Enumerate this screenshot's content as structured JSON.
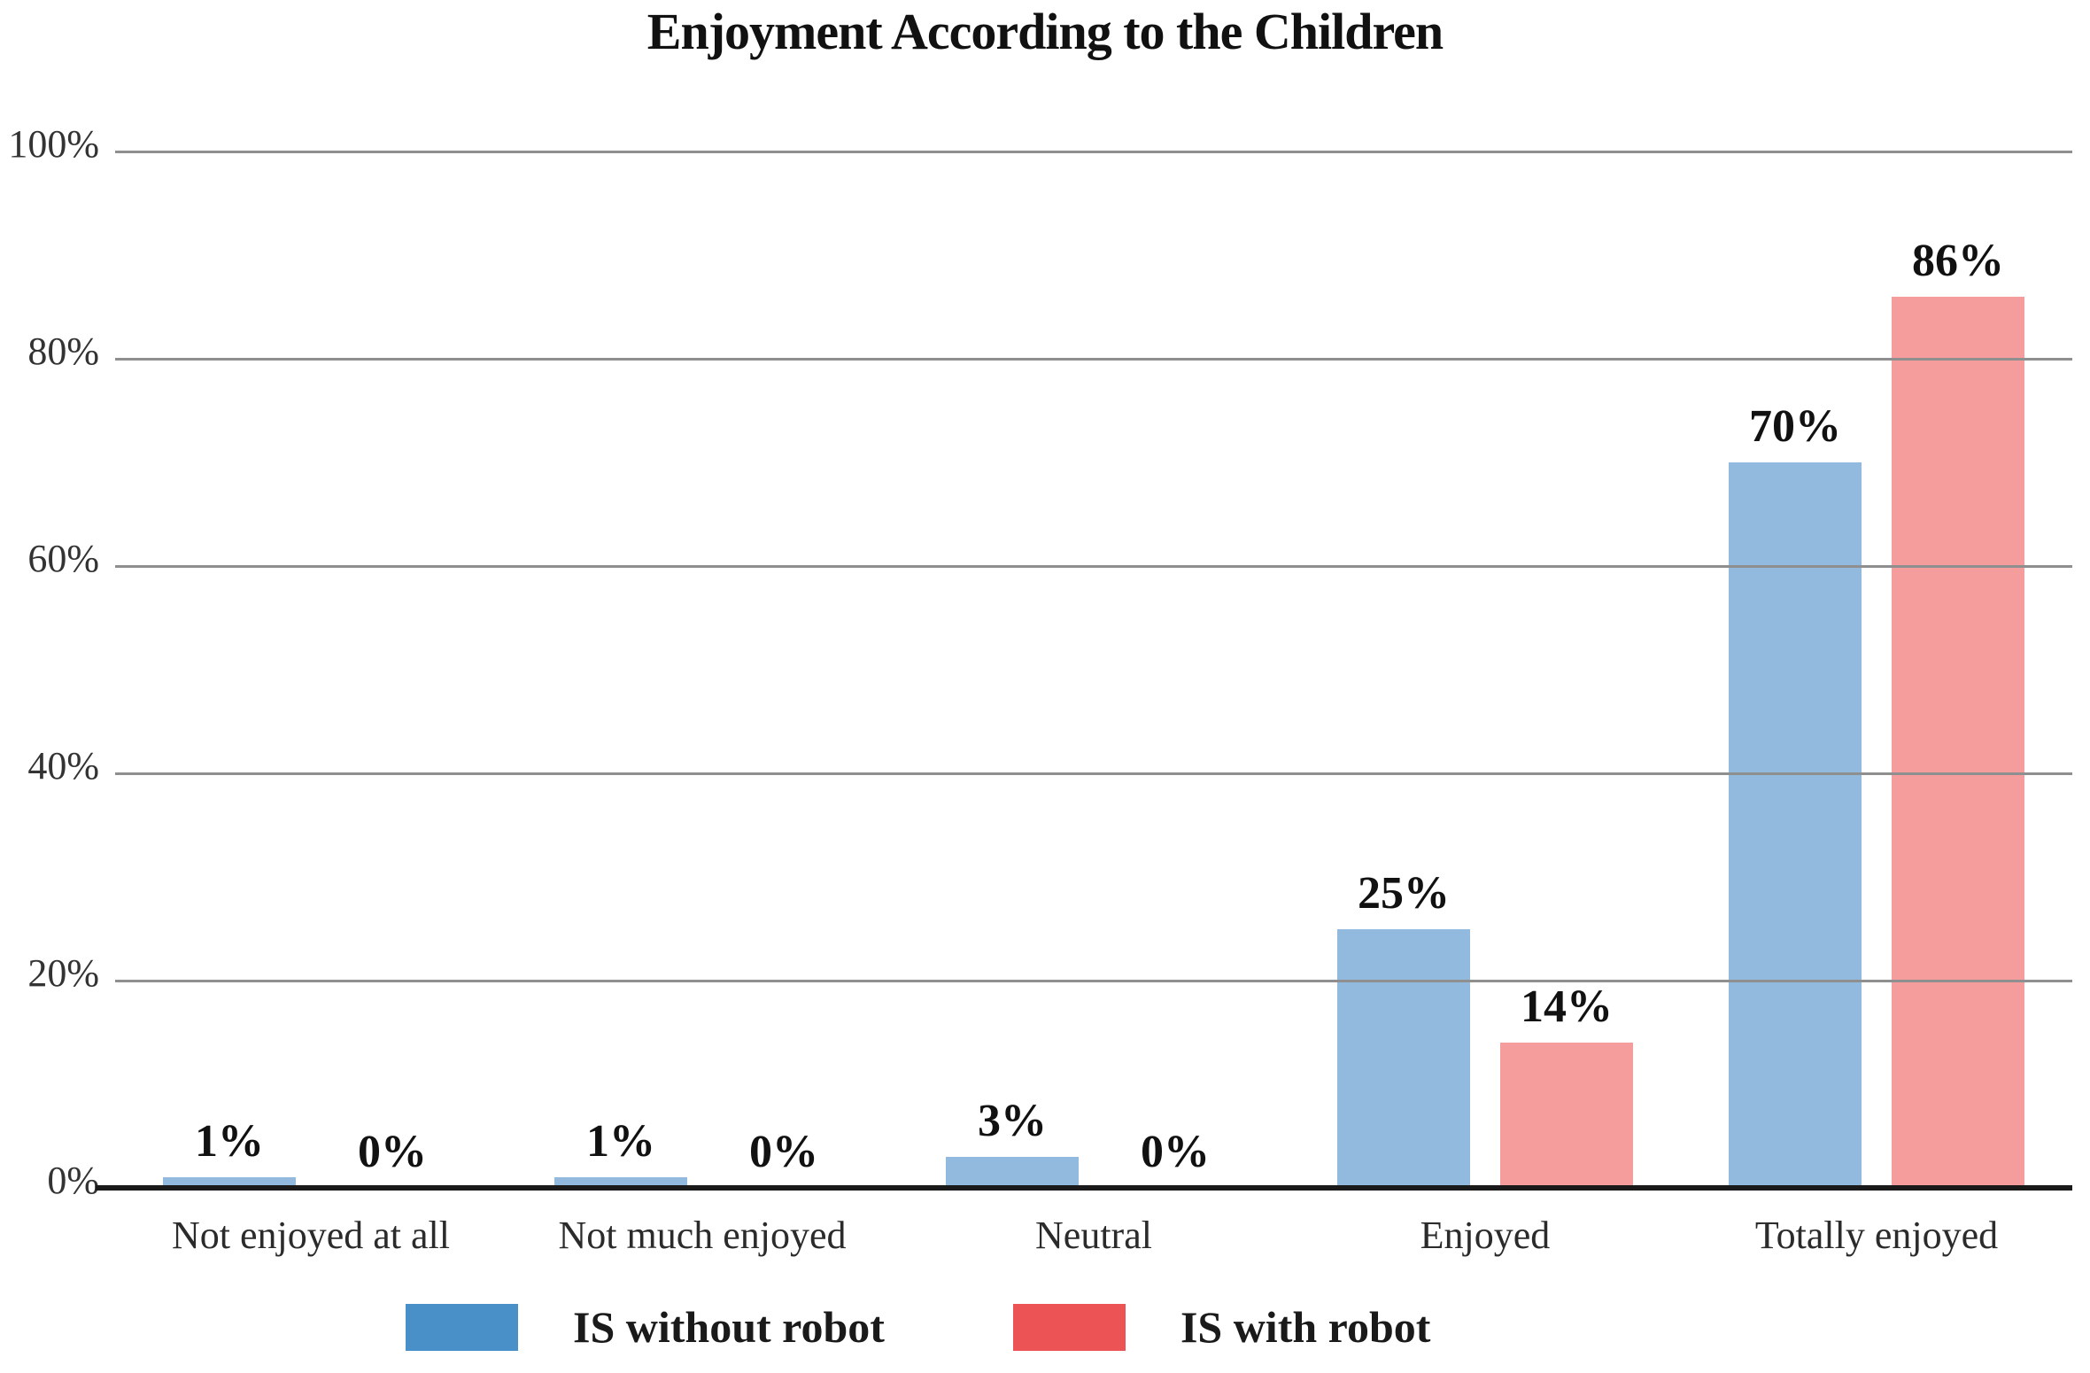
{
  "page": {
    "background": "#ffffff"
  },
  "chart_data": {
    "type": "bar",
    "title": "Enjoyment According to the Children",
    "categories": [
      "Not enjoyed at all",
      "Not much enjoyed",
      "Neutral",
      "Enjoyed",
      "Totally enjoyed"
    ],
    "series": [
      {
        "name": "IS without robot",
        "legend_color": "#4a90c8",
        "bar_color": "#92b9de",
        "values": [
          1,
          1,
          3,
          25,
          70
        ],
        "labels": [
          "1%",
          "1%",
          "3%",
          "25%",
          "70%"
        ]
      },
      {
        "name": "IS with robot",
        "legend_color": "#ec5355",
        "bar_color": "#f59c9c",
        "values": [
          0,
          0,
          0,
          14,
          86
        ],
        "labels": [
          "0%",
          "0%",
          "0%",
          "14%",
          "86%"
        ]
      }
    ],
    "xlabel": "",
    "ylabel": "",
    "ylim": [
      0,
      100
    ],
    "yticks": [
      0,
      20,
      40,
      60,
      80,
      100
    ],
    "ytick_labels": [
      "0%",
      "20%",
      "40%",
      "60%",
      "80%",
      "100%"
    ],
    "grid": true,
    "gridlines_above_bars": true,
    "legend_position": "bottom",
    "colors": {
      "gridline": "#8f8f8f",
      "axis": "#1a1a1a",
      "tick_text": "#333333",
      "category_text": "#2b2b2b",
      "value_text": "#111111"
    }
  }
}
